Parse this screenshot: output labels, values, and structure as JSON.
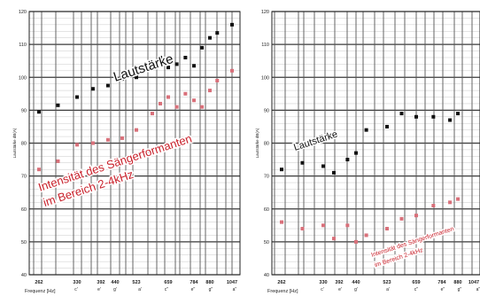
{
  "chart_data": [
    {
      "type": "scatter",
      "y_axis_label": "Lautstärke dB(A)",
      "x_axis_label": "Frequenz [Hz]",
      "ylim": [
        40,
        120
      ],
      "yticks": [
        "40",
        "50",
        "60",
        "70",
        "80",
        "90",
        "100",
        "110",
        "120"
      ],
      "x_ticks_hz": [
        "262",
        "330",
        "392",
        "440",
        "523",
        "659",
        "784",
        "880",
        "1047"
      ],
      "x_ticks_notes": [
        "c'",
        "e'",
        "g'",
        "a'",
        "c''",
        "e''",
        "g''",
        "a''",
        "c'''"
      ],
      "annotation_loudness": "Lautstärke",
      "annotation_singers_formant": [
        "Intensität des Sängerformanten",
        "im Bereich 2-4kHz"
      ],
      "series": [
        {
          "x": [
            262,
            294,
            330,
            370,
            415,
            466,
            523,
            587,
            622,
            659,
            698,
            740,
            784,
            831,
            880,
            932,
            1047
          ],
          "y": [
            89.5,
            91.5,
            94,
            96.5,
            97.5,
            99.5,
            100,
            104,
            106,
            103,
            104,
            106,
            103.5,
            109,
            112,
            113.5,
            116
          ]
        },
        {
          "x": [
            262,
            294,
            330,
            370,
            415,
            466,
            523,
            587,
            622,
            659,
            698,
            740,
            784,
            831,
            880,
            932,
            1047
          ],
          "y": [
            72,
            74.5,
            79.5,
            80,
            81,
            81.5,
            84,
            89,
            92,
            94,
            91,
            95,
            93,
            91,
            96,
            99,
            102
          ]
        }
      ],
      "colors": [
        "#111111",
        "#d9707a"
      ]
    },
    {
      "type": "scatter",
      "y_axis_label": "Lautstärke dB(A)",
      "x_axis_label": "Frequenz [Hz]",
      "ylim": [
        40,
        120
      ],
      "yticks": [
        "40",
        "50",
        "60",
        "70",
        "80",
        "90",
        "100",
        "110",
        "120"
      ],
      "x_ticks_hz": [
        "262",
        "330",
        "392",
        "440",
        "523",
        "659",
        "784",
        "880",
        "1047"
      ],
      "x_ticks_notes": [
        "c'",
        "e'",
        "g'",
        "a'",
        "c''",
        "e''",
        "g''",
        "a''",
        "c'''"
      ],
      "annotation_loudness": "Lautstärke",
      "annotation_singers_formant": [
        "Intensität des Sängerformanten",
        "im Bereich 2-4kHz"
      ],
      "series": [
        {
          "x": [
            262,
            294,
            330,
            370,
            415,
            440,
            466,
            523,
            587,
            659,
            740,
            831,
            880
          ],
          "y": [
            72,
            74,
            73,
            71,
            75,
            77,
            84,
            85,
            89,
            88,
            88,
            87,
            89
          ]
        },
        {
          "x": [
            262,
            294,
            330,
            370,
            415,
            440,
            466,
            523,
            587,
            659,
            740,
            831,
            880
          ],
          "y": [
            56,
            54,
            55,
            51,
            55,
            50,
            52,
            54,
            57,
            58,
            61,
            62,
            63
          ]
        }
      ],
      "colors": [
        "#111111",
        "#d9707a"
      ]
    }
  ]
}
